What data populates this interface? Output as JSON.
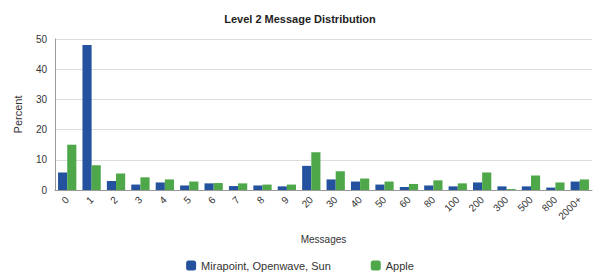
{
  "chart_data": {
    "type": "bar",
    "title": "Level 2 Message Distribution",
    "x_label": "Messages",
    "y_label": "Percent",
    "categories": [
      "0",
      "1",
      "2",
      "3",
      "4",
      "5",
      "6",
      "7",
      "8",
      "9",
      "20",
      "30",
      "40",
      "50",
      "60",
      "80",
      "100",
      "200",
      "300",
      "500",
      "800",
      "2000+"
    ],
    "series": [
      {
        "name": "Mirapoint, Openwave, Sun",
        "color": "#24529e",
        "values": [
          5.8,
          48,
          3,
          1.8,
          2.5,
          1.5,
          2.2,
          1.3,
          1.5,
          1.2,
          8,
          3.5,
          2.8,
          1.8,
          1,
          1.5,
          1.2,
          2.5,
          1.2,
          1.2,
          0.8,
          2.8
        ]
      },
      {
        "name": "Apple",
        "color": "#4ea84a",
        "values": [
          15,
          8.2,
          5.5,
          4.2,
          3.5,
          2.8,
          2.3,
          2.2,
          1.8,
          1.8,
          12.5,
          6.2,
          3.8,
          2.8,
          2,
          3.2,
          2.2,
          5.8,
          0.3,
          4.8,
          2.5,
          3.5
        ]
      }
    ],
    "ylim": [
      0,
      50
    ],
    "yticks": [
      0,
      10,
      20,
      30,
      40,
      50
    ],
    "grid": true,
    "legend": "bottom"
  }
}
